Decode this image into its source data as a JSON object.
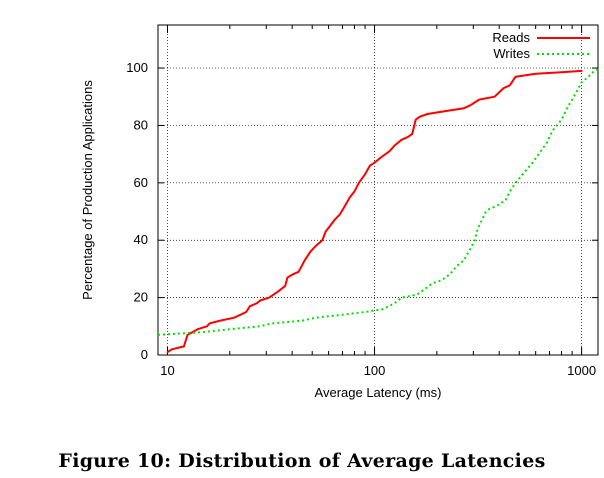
{
  "caption": "Figure 10: Distribution of Average Latencies",
  "chart_data": {
    "type": "line",
    "title": "",
    "xlabel": "Average Latency (ms)",
    "ylabel": "Percentage of Production Applications",
    "xscale": "log",
    "xlim": [
      9,
      1200
    ],
    "ylim": [
      0,
      115
    ],
    "xticks": [
      10,
      100,
      1000
    ],
    "xtick_labels": [
      "10",
      "100",
      "1000"
    ],
    "yticks": [
      0,
      20,
      40,
      60,
      80,
      100
    ],
    "ytick_labels": [
      "0",
      "20",
      "40",
      "60",
      "80",
      "100"
    ],
    "grid": true,
    "legend_position": "top-right",
    "series": [
      {
        "name": "Reads",
        "color": "#ff0000",
        "style": "solid",
        "points": [
          [
            10,
            1
          ],
          [
            10.5,
            2
          ],
          [
            12,
            3
          ],
          [
            12.5,
            7
          ],
          [
            14,
            9
          ],
          [
            15.5,
            10
          ],
          [
            16,
            11
          ],
          [
            18,
            12
          ],
          [
            21,
            13
          ],
          [
            24,
            15
          ],
          [
            25,
            17
          ],
          [
            27,
            18
          ],
          [
            28,
            19
          ],
          [
            31,
            20
          ],
          [
            34,
            22
          ],
          [
            37,
            24
          ],
          [
            38,
            27
          ],
          [
            40,
            28
          ],
          [
            43,
            29
          ],
          [
            46,
            33
          ],
          [
            49,
            36
          ],
          [
            52,
            38
          ],
          [
            56,
            40
          ],
          [
            58,
            43
          ],
          [
            61,
            45
          ],
          [
            64,
            47
          ],
          [
            68,
            49
          ],
          [
            72,
            52
          ],
          [
            76,
            55
          ],
          [
            80,
            57
          ],
          [
            84,
            60
          ],
          [
            90,
            63
          ],
          [
            95,
            66
          ],
          [
            100,
            67
          ],
          [
            108,
            69
          ],
          [
            118,
            71
          ],
          [
            125,
            73
          ],
          [
            135,
            75
          ],
          [
            145,
            76
          ],
          [
            152,
            77
          ],
          [
            158,
            82
          ],
          [
            165,
            83
          ],
          [
            180,
            84
          ],
          [
            220,
            85
          ],
          [
            270,
            86
          ],
          [
            290,
            87
          ],
          [
            320,
            89
          ],
          [
            380,
            90
          ],
          [
            420,
            93
          ],
          [
            450,
            94
          ],
          [
            480,
            97
          ],
          [
            600,
            98
          ],
          [
            800,
            98.5
          ],
          [
            1000,
            99
          ]
        ]
      },
      {
        "name": "Writes",
        "color": "#00e000",
        "style": "dotted",
        "points": [
          [
            9,
            7
          ],
          [
            15,
            8
          ],
          [
            20,
            9
          ],
          [
            28,
            10
          ],
          [
            32,
            11
          ],
          [
            45,
            12
          ],
          [
            52,
            13
          ],
          [
            70,
            14
          ],
          [
            90,
            15
          ],
          [
            110,
            16
          ],
          [
            125,
            18
          ],
          [
            135,
            20
          ],
          [
            160,
            21
          ],
          [
            175,
            23
          ],
          [
            190,
            25
          ],
          [
            210,
            26
          ],
          [
            230,
            28
          ],
          [
            250,
            31
          ],
          [
            270,
            33
          ],
          [
            290,
            37
          ],
          [
            305,
            40
          ],
          [
            315,
            44
          ],
          [
            330,
            47
          ],
          [
            345,
            50
          ],
          [
            360,
            51
          ],
          [
            390,
            52
          ],
          [
            430,
            54
          ],
          [
            450,
            57
          ],
          [
            480,
            60
          ],
          [
            520,
            63
          ],
          [
            580,
            67
          ],
          [
            620,
            70
          ],
          [
            680,
            74
          ],
          [
            720,
            78
          ],
          [
            760,
            80
          ],
          [
            800,
            82
          ],
          [
            850,
            86
          ],
          [
            900,
            89
          ],
          [
            950,
            92
          ],
          [
            1000,
            95
          ],
          [
            1080,
            97
          ],
          [
            1150,
            99
          ],
          [
            1200,
            99.5
          ]
        ]
      }
    ]
  }
}
